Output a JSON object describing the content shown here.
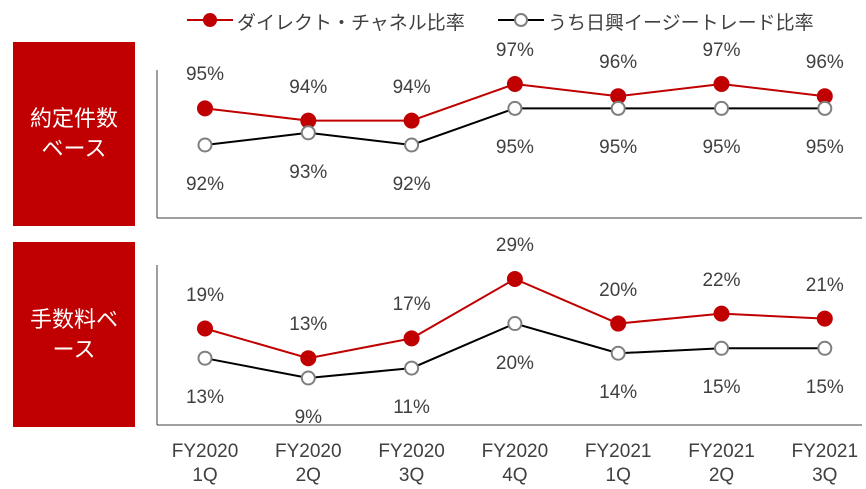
{
  "chart_data": [
    {
      "type": "line",
      "title": "約定件数ベース",
      "series": [
        {
          "name": "ダイレクト・チャネル比率",
          "color": "#c00000",
          "values": [
            95,
            94,
            94,
            97,
            96,
            97,
            96
          ],
          "value_labels": [
            "95%",
            "94%",
            "94%",
            "97%",
            "96%",
            "97%",
            "96%"
          ]
        },
        {
          "name": "うち日興イージートレード比率",
          "color": "#000000",
          "values": [
            92,
            93,
            92,
            95,
            95,
            95,
            95
          ],
          "value_labels": [
            "92%",
            "93%",
            "92%",
            "95%",
            "95%",
            "95%",
            "95%"
          ]
        }
      ]
    },
    {
      "type": "line",
      "title": "手数料ベース",
      "categories": [
        "FY2020 1Q",
        "FY2020 2Q",
        "FY2020 3Q",
        "FY2020 4Q",
        "FY2021 1Q",
        "FY2021 2Q",
        "FY2021 3Q"
      ],
      "series": [
        {
          "color": "#c00000",
          "values": [
            19,
            13,
            17,
            29,
            20,
            22,
            21
          ],
          "value_labels": [
            "19%",
            "13%",
            "17%",
            "29%",
            "20%",
            "22%",
            "21%"
          ]
        },
        {
          "color": "#000000",
          "values": [
            13,
            9,
            11,
            20,
            14,
            15,
            15
          ],
          "value_labels": [
            "13%",
            "9%",
            "11%",
            "20%",
            "14%",
            "15%",
            "15%"
          ]
        }
      ]
    }
  ]
}
